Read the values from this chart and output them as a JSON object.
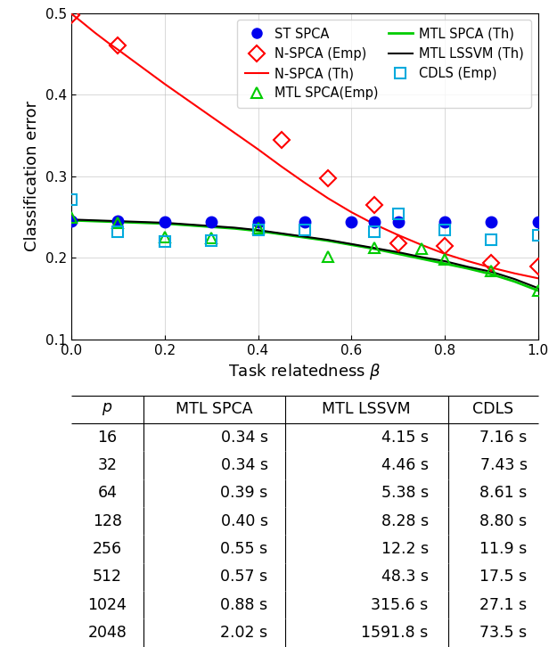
{
  "xlabel": "Task relatedness $\\beta$",
  "ylabel": "Classification error",
  "xlim": [
    0,
    1.0
  ],
  "ylim": [
    0.1,
    0.5
  ],
  "yticks": [
    0.1,
    0.2,
    0.3,
    0.4,
    0.5
  ],
  "xticks": [
    0.0,
    0.2,
    0.4,
    0.6,
    0.8,
    1.0
  ],
  "st_spca_x": [
    0.0,
    0.1,
    0.2,
    0.3,
    0.4,
    0.5,
    0.6,
    0.65,
    0.7,
    0.8,
    0.9,
    1.0
  ],
  "st_spca_y": [
    0.245,
    0.245,
    0.244,
    0.244,
    0.244,
    0.244,
    0.244,
    0.244,
    0.244,
    0.244,
    0.244,
    0.244
  ],
  "nspca_th_x": [
    0.0,
    0.02,
    0.05,
    0.08,
    0.1,
    0.15,
    0.2,
    0.25,
    0.3,
    0.35,
    0.4,
    0.45,
    0.5,
    0.55,
    0.6,
    0.65,
    0.7,
    0.75,
    0.8,
    0.85,
    0.9,
    0.95,
    1.0
  ],
  "nspca_th_y": [
    0.499,
    0.49,
    0.476,
    0.463,
    0.455,
    0.434,
    0.413,
    0.393,
    0.373,
    0.353,
    0.333,
    0.312,
    0.292,
    0.273,
    0.256,
    0.241,
    0.228,
    0.216,
    0.205,
    0.196,
    0.188,
    0.181,
    0.175
  ],
  "mtl_spca_th_x": [
    0.0,
    0.05,
    0.1,
    0.15,
    0.2,
    0.25,
    0.3,
    0.35,
    0.4,
    0.45,
    0.5,
    0.55,
    0.6,
    0.65,
    0.7,
    0.75,
    0.8,
    0.85,
    0.9,
    0.95,
    1.0
  ],
  "mtl_spca_th_y": [
    0.246,
    0.245,
    0.244,
    0.243,
    0.242,
    0.24,
    0.238,
    0.236,
    0.233,
    0.229,
    0.225,
    0.221,
    0.216,
    0.211,
    0.205,
    0.199,
    0.193,
    0.187,
    0.18,
    0.171,
    0.16
  ],
  "mtl_lssvm_th_x": [
    0.0,
    0.05,
    0.1,
    0.15,
    0.2,
    0.25,
    0.3,
    0.35,
    0.4,
    0.45,
    0.5,
    0.55,
    0.6,
    0.65,
    0.7,
    0.75,
    0.8,
    0.85,
    0.9,
    0.95,
    1.0
  ],
  "mtl_lssvm_th_y": [
    0.247,
    0.246,
    0.245,
    0.244,
    0.243,
    0.241,
    0.239,
    0.237,
    0.234,
    0.23,
    0.226,
    0.222,
    0.217,
    0.212,
    0.207,
    0.201,
    0.196,
    0.189,
    0.183,
    0.174,
    0.163
  ],
  "nspca_emp_x": [
    0.0,
    0.1,
    0.45,
    0.55,
    0.65,
    0.7,
    0.8,
    0.9,
    1.0
  ],
  "nspca_emp_y": [
    0.497,
    0.46,
    0.344,
    0.298,
    0.265,
    0.218,
    0.215,
    0.194,
    0.19
  ],
  "mtl_spca_emp_x": [
    0.0,
    0.1,
    0.2,
    0.3,
    0.4,
    0.55,
    0.65,
    0.75,
    0.8,
    0.9,
    1.0
  ],
  "mtl_spca_emp_y": [
    0.249,
    0.243,
    0.225,
    0.224,
    0.236,
    0.202,
    0.212,
    0.211,
    0.198,
    0.184,
    0.16
  ],
  "cdls_emp_x": [
    0.0,
    0.1,
    0.2,
    0.3,
    0.4,
    0.5,
    0.65,
    0.7,
    0.8,
    0.9,
    1.0
  ],
  "cdls_emp_y": [
    0.271,
    0.232,
    0.22,
    0.221,
    0.234,
    0.234,
    0.232,
    0.254,
    0.234,
    0.222,
    0.228
  ],
  "table_p": [
    "16",
    "32",
    "64",
    "128",
    "256",
    "512",
    "1024",
    "2048"
  ],
  "table_mtl_spca": [
    "0.34 s",
    "0.34 s",
    "0.39 s",
    "0.40 s",
    "0.55 s",
    "0.57 s",
    "0.88 s",
    "2.02 s"
  ],
  "table_mtl_lssvm": [
    "4.15 s",
    "4.46 s",
    "5.38 s",
    "8.28 s",
    "12.2 s",
    "48.3 s",
    "315.6 s",
    "1591.8 s"
  ],
  "table_cdls": [
    "7.16 s",
    "7.43 s",
    "8.61 s",
    "8.80 s",
    "11.9 s",
    "17.5 s",
    "27.1 s",
    "73.5 s"
  ],
  "color_red": "#FF0000",
  "color_green": "#00CC00",
  "color_black": "#000000",
  "color_blue": "#0000EE",
  "color_cyan": "#00AADD"
}
